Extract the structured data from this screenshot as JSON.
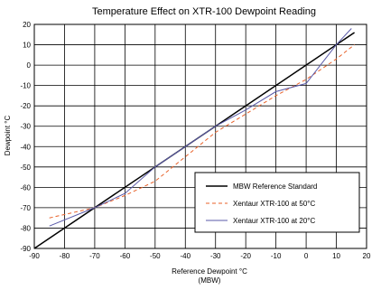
{
  "chart_data": {
    "type": "line",
    "title": "Temperature Effect on XTR-100 Dewpoint Reading",
    "xlabel": "Reference Dewpoint °C",
    "xlabel_sub": "(MBW)",
    "ylabel": "Dewpoint °C",
    "xlim": [
      -90,
      20
    ],
    "ylim": [
      -90,
      20
    ],
    "xticks": [
      -90,
      -80,
      -70,
      -60,
      -50,
      -40,
      -30,
      -20,
      -10,
      0,
      10,
      20
    ],
    "yticks": [
      -90,
      -80,
      -70,
      -60,
      -50,
      -40,
      -30,
      -20,
      -10,
      0,
      10,
      20
    ],
    "grid": true,
    "legend_position": "lower-right",
    "series": [
      {
        "name": "MBW Reference Standard",
        "color": "#000000",
        "style": "solid",
        "x": [
          -90,
          16
        ],
        "y": [
          -90,
          16
        ]
      },
      {
        "name": "Xentaur XTR-100 at 50°C",
        "color": "#e8622a",
        "style": "dashed",
        "x": [
          -85,
          -70,
          -60,
          -50,
          -40,
          -30,
          -20,
          -10,
          0,
          10,
          16
        ],
        "y": [
          -75,
          -70,
          -64,
          -57,
          -45,
          -33,
          -24,
          -15,
          -7,
          3,
          10
        ]
      },
      {
        "name": "Xentaur XTR-100 at 20°C",
        "color": "#5a5aa8",
        "style": "solid",
        "x": [
          -85,
          -70,
          -60,
          -50,
          -40,
          -30,
          -20,
          -10,
          0,
          10,
          15
        ],
        "y": [
          -79,
          -70,
          -63,
          -50,
          -40,
          -30,
          -22,
          -13,
          -9,
          10,
          18
        ]
      }
    ]
  }
}
